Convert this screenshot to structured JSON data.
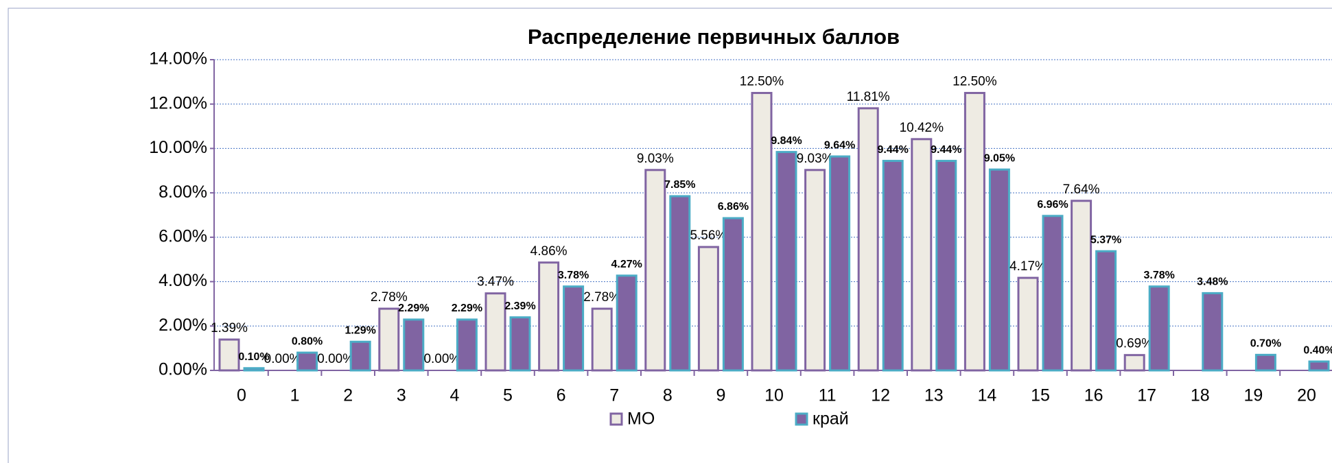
{
  "chart_data": {
    "type": "bar",
    "title": "Распределение первичных баллов",
    "categories": [
      "0",
      "1",
      "2",
      "3",
      "4",
      "5",
      "6",
      "7",
      "8",
      "9",
      "10",
      "11",
      "12",
      "13",
      "14",
      "15",
      "16",
      "17",
      "18",
      "19",
      "20"
    ],
    "series": [
      {
        "name": "МО",
        "color": "#eeebe3",
        "edge": "#8064a2",
        "values": [
          1.39,
          0,
          0,
          2.78,
          0,
          3.47,
          4.86,
          2.78,
          9.03,
          5.56,
          12.5,
          9.03,
          11.81,
          10.42,
          12.5,
          4.17,
          7.64,
          0.69,
          null,
          null,
          null
        ],
        "value_labels": [
          "1.39%",
          "0.00%",
          "0.00%",
          "2.78%",
          "0.00%",
          "3.47%",
          "4.86%",
          "2.78%",
          "9.03%",
          "5.56%",
          "12.50%",
          "9.03%",
          "11.81%",
          "10.42%",
          "12.50%",
          "4.17%",
          "7.64%",
          "0.69%",
          null,
          null,
          null
        ]
      },
      {
        "name": "край",
        "color": "#8064a2",
        "edge": "#4bacc6",
        "values": [
          0.1,
          0.8,
          1.29,
          2.29,
          2.29,
          2.39,
          3.78,
          4.27,
          7.85,
          6.86,
          9.84,
          9.64,
          9.44,
          9.44,
          9.05,
          6.96,
          5.37,
          3.78,
          3.48,
          0.7,
          0.4
        ],
        "value_labels": [
          "0.10%",
          "0.80%",
          "1.29%",
          "2.29%",
          "2.29%",
          "2.39%",
          "3.78%",
          "4.27%",
          "7.85%",
          "6.86%",
          "9.84%",
          "9.64%",
          "9.44%",
          "9.44%",
          "9.05%",
          "6.96%",
          "5.37%",
          "3.78%",
          "3.48%",
          "0.70%",
          "0.40%"
        ]
      }
    ],
    "ylim": [
      0,
      14
    ],
    "yticks": [
      {
        "value": 0,
        "label": "0.00%"
      },
      {
        "value": 2,
        "label": "2.00%"
      },
      {
        "value": 4,
        "label": "4.00%"
      },
      {
        "value": 6,
        "label": "6.00%"
      },
      {
        "value": 8,
        "label": "8.00%"
      },
      {
        "value": 10,
        "label": "10.00%"
      },
      {
        "value": 12,
        "label": "12.00%"
      },
      {
        "value": 14,
        "label": "14.00%"
      }
    ],
    "grid": true,
    "legend": "bottom"
  }
}
